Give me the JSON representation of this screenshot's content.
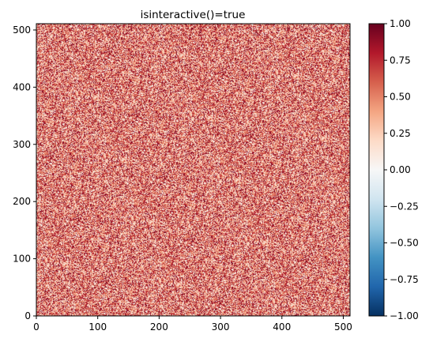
{
  "chart_data": {
    "type": "heatmap",
    "title": "isinteractive()=true",
    "xlabel": "",
    "ylabel": "",
    "xlim": [
      0,
      511
    ],
    "ylim": [
      0,
      511
    ],
    "x_ticks": [
      0,
      100,
      200,
      300,
      400,
      500
    ],
    "y_ticks": [
      0,
      100,
      200,
      300,
      400,
      500
    ],
    "grid_size": [
      512,
      512
    ],
    "values_description": "uniform random noise, mostly positive",
    "value_range": [
      -1.0,
      1.0
    ],
    "colormap": "RdBu_r",
    "colorbar_ticks": [
      "1.00",
      "0.75",
      "0.50",
      "0.25",
      "0.00",
      "−0.25",
      "−0.50",
      "−0.75",
      "−1.00"
    ],
    "colorbar_values": [
      1.0,
      0.75,
      0.5,
      0.25,
      0.0,
      -0.25,
      -0.5,
      -0.75,
      -1.0
    ],
    "grid": false
  }
}
